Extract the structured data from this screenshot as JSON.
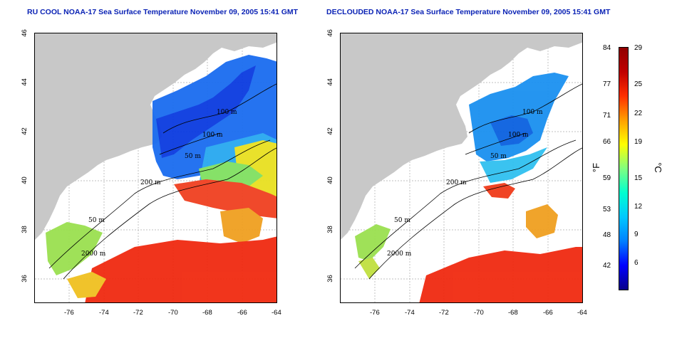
{
  "panels": [
    {
      "title": "RU COOL NOAA-17 Sea Surface Temperature November 09, 2005 15:41 GMT",
      "contour_labels": [
        "100 m",
        "100 m",
        "50 m",
        "200 m",
        "50 m",
        "2000 m"
      ]
    },
    {
      "title": "DECLOUDED NOAA-17 Sea Surface Temperature November 09, 2005 15:41 GMT",
      "contour_labels": [
        "100 m",
        "100 m",
        "50 m",
        "200 m",
        "50 m",
        "2000 m"
      ]
    }
  ],
  "axes": {
    "x_ticks": [
      "-76",
      "-74",
      "-72",
      "-70",
      "-68",
      "-66",
      "-64"
    ],
    "y_ticks": [
      "36",
      "38",
      "40",
      "42",
      "44",
      "46"
    ],
    "lon_range": [
      -77,
      -63
    ],
    "lat_range": [
      35,
      46
    ]
  },
  "colorbar": {
    "fahrenheit_label": "°F",
    "celsius_label": "°C",
    "fahrenheit_ticks": [
      "84",
      "77",
      "71",
      "66",
      "59",
      "53",
      "48",
      "42"
    ],
    "celsius_ticks": [
      "29",
      "25",
      "22",
      "19",
      "15",
      "12",
      "9",
      "6"
    ],
    "colors": [
      "#08008a",
      "#0000ff",
      "#0080ff",
      "#00c8ff",
      "#00ffd0",
      "#80ff80",
      "#ffff00",
      "#ffa000",
      "#ff3000",
      "#c00000",
      "#900000"
    ]
  },
  "colors": {
    "land": "#c8c8c8",
    "ocean_bg": "#ffffff",
    "title": "#0b23b5"
  }
}
